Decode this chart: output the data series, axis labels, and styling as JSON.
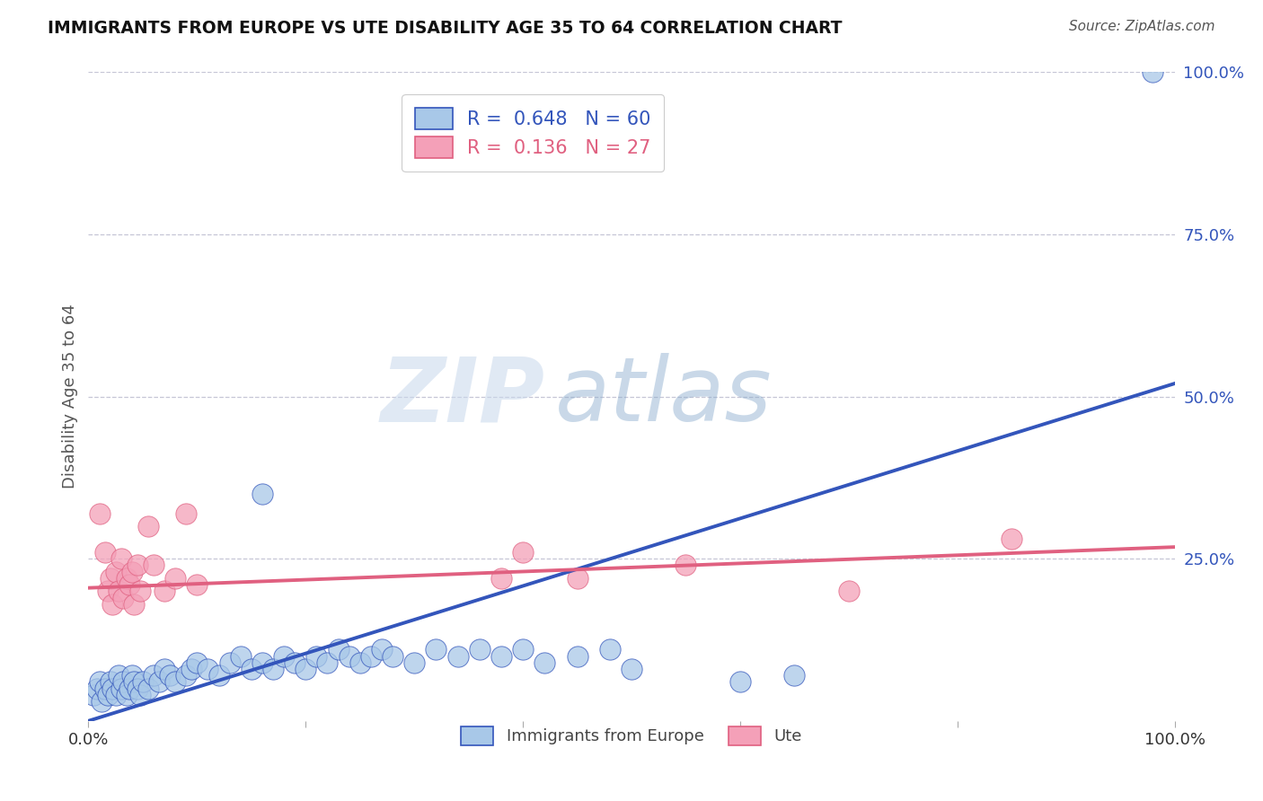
{
  "title": "IMMIGRANTS FROM EUROPE VS UTE DISABILITY AGE 35 TO 64 CORRELATION CHART",
  "source_text": "Source: ZipAtlas.com",
  "ylabel": "Disability Age 35 to 64",
  "xlim": [
    0.0,
    1.0
  ],
  "ylim": [
    0.0,
    1.0
  ],
  "blue_R": 0.648,
  "blue_N": 60,
  "pink_R": 0.136,
  "pink_N": 27,
  "blue_color": "#a8c8e8",
  "pink_color": "#f4a0b8",
  "blue_line_color": "#3355bb",
  "pink_line_color": "#e06080",
  "legend_label_blue": "Immigrants from Europe",
  "legend_label_pink": "Ute",
  "watermark_zip": "ZIP",
  "watermark_atlas": "atlas",
  "blue_line_x": [
    0.0,
    1.0
  ],
  "blue_line_y": [
    0.0,
    0.52
  ],
  "pink_line_x": [
    0.0,
    1.0
  ],
  "pink_line_y": [
    0.205,
    0.268
  ],
  "blue_scatter": [
    [
      0.005,
      0.04
    ],
    [
      0.008,
      0.05
    ],
    [
      0.01,
      0.06
    ],
    [
      0.012,
      0.03
    ],
    [
      0.015,
      0.05
    ],
    [
      0.018,
      0.04
    ],
    [
      0.02,
      0.06
    ],
    [
      0.022,
      0.05
    ],
    [
      0.025,
      0.04
    ],
    [
      0.028,
      0.07
    ],
    [
      0.03,
      0.05
    ],
    [
      0.032,
      0.06
    ],
    [
      0.035,
      0.04
    ],
    [
      0.038,
      0.05
    ],
    [
      0.04,
      0.07
    ],
    [
      0.042,
      0.06
    ],
    [
      0.045,
      0.05
    ],
    [
      0.048,
      0.04
    ],
    [
      0.05,
      0.06
    ],
    [
      0.055,
      0.05
    ],
    [
      0.06,
      0.07
    ],
    [
      0.065,
      0.06
    ],
    [
      0.07,
      0.08
    ],
    [
      0.075,
      0.07
    ],
    [
      0.08,
      0.06
    ],
    [
      0.09,
      0.07
    ],
    [
      0.095,
      0.08
    ],
    [
      0.1,
      0.09
    ],
    [
      0.11,
      0.08
    ],
    [
      0.12,
      0.07
    ],
    [
      0.13,
      0.09
    ],
    [
      0.14,
      0.1
    ],
    [
      0.15,
      0.08
    ],
    [
      0.16,
      0.09
    ],
    [
      0.17,
      0.08
    ],
    [
      0.18,
      0.1
    ],
    [
      0.19,
      0.09
    ],
    [
      0.2,
      0.08
    ],
    [
      0.21,
      0.1
    ],
    [
      0.22,
      0.09
    ],
    [
      0.23,
      0.11
    ],
    [
      0.24,
      0.1
    ],
    [
      0.25,
      0.09
    ],
    [
      0.26,
      0.1
    ],
    [
      0.27,
      0.11
    ],
    [
      0.28,
      0.1
    ],
    [
      0.3,
      0.09
    ],
    [
      0.32,
      0.11
    ],
    [
      0.34,
      0.1
    ],
    [
      0.36,
      0.11
    ],
    [
      0.38,
      0.1
    ],
    [
      0.4,
      0.11
    ],
    [
      0.42,
      0.09
    ],
    [
      0.45,
      0.1
    ],
    [
      0.48,
      0.11
    ],
    [
      0.5,
      0.08
    ],
    [
      0.6,
      0.06
    ],
    [
      0.65,
      0.07
    ],
    [
      0.98,
      1.0
    ],
    [
      0.16,
      0.35
    ]
  ],
  "pink_scatter": [
    [
      0.01,
      0.32
    ],
    [
      0.015,
      0.26
    ],
    [
      0.018,
      0.2
    ],
    [
      0.02,
      0.22
    ],
    [
      0.022,
      0.18
    ],
    [
      0.025,
      0.23
    ],
    [
      0.028,
      0.2
    ],
    [
      0.03,
      0.25
    ],
    [
      0.032,
      0.19
    ],
    [
      0.035,
      0.22
    ],
    [
      0.038,
      0.21
    ],
    [
      0.04,
      0.23
    ],
    [
      0.042,
      0.18
    ],
    [
      0.045,
      0.24
    ],
    [
      0.048,
      0.2
    ],
    [
      0.055,
      0.3
    ],
    [
      0.06,
      0.24
    ],
    [
      0.07,
      0.2
    ],
    [
      0.08,
      0.22
    ],
    [
      0.09,
      0.32
    ],
    [
      0.1,
      0.21
    ],
    [
      0.38,
      0.22
    ],
    [
      0.4,
      0.26
    ],
    [
      0.45,
      0.22
    ],
    [
      0.55,
      0.24
    ],
    [
      0.7,
      0.2
    ],
    [
      0.85,
      0.28
    ]
  ]
}
